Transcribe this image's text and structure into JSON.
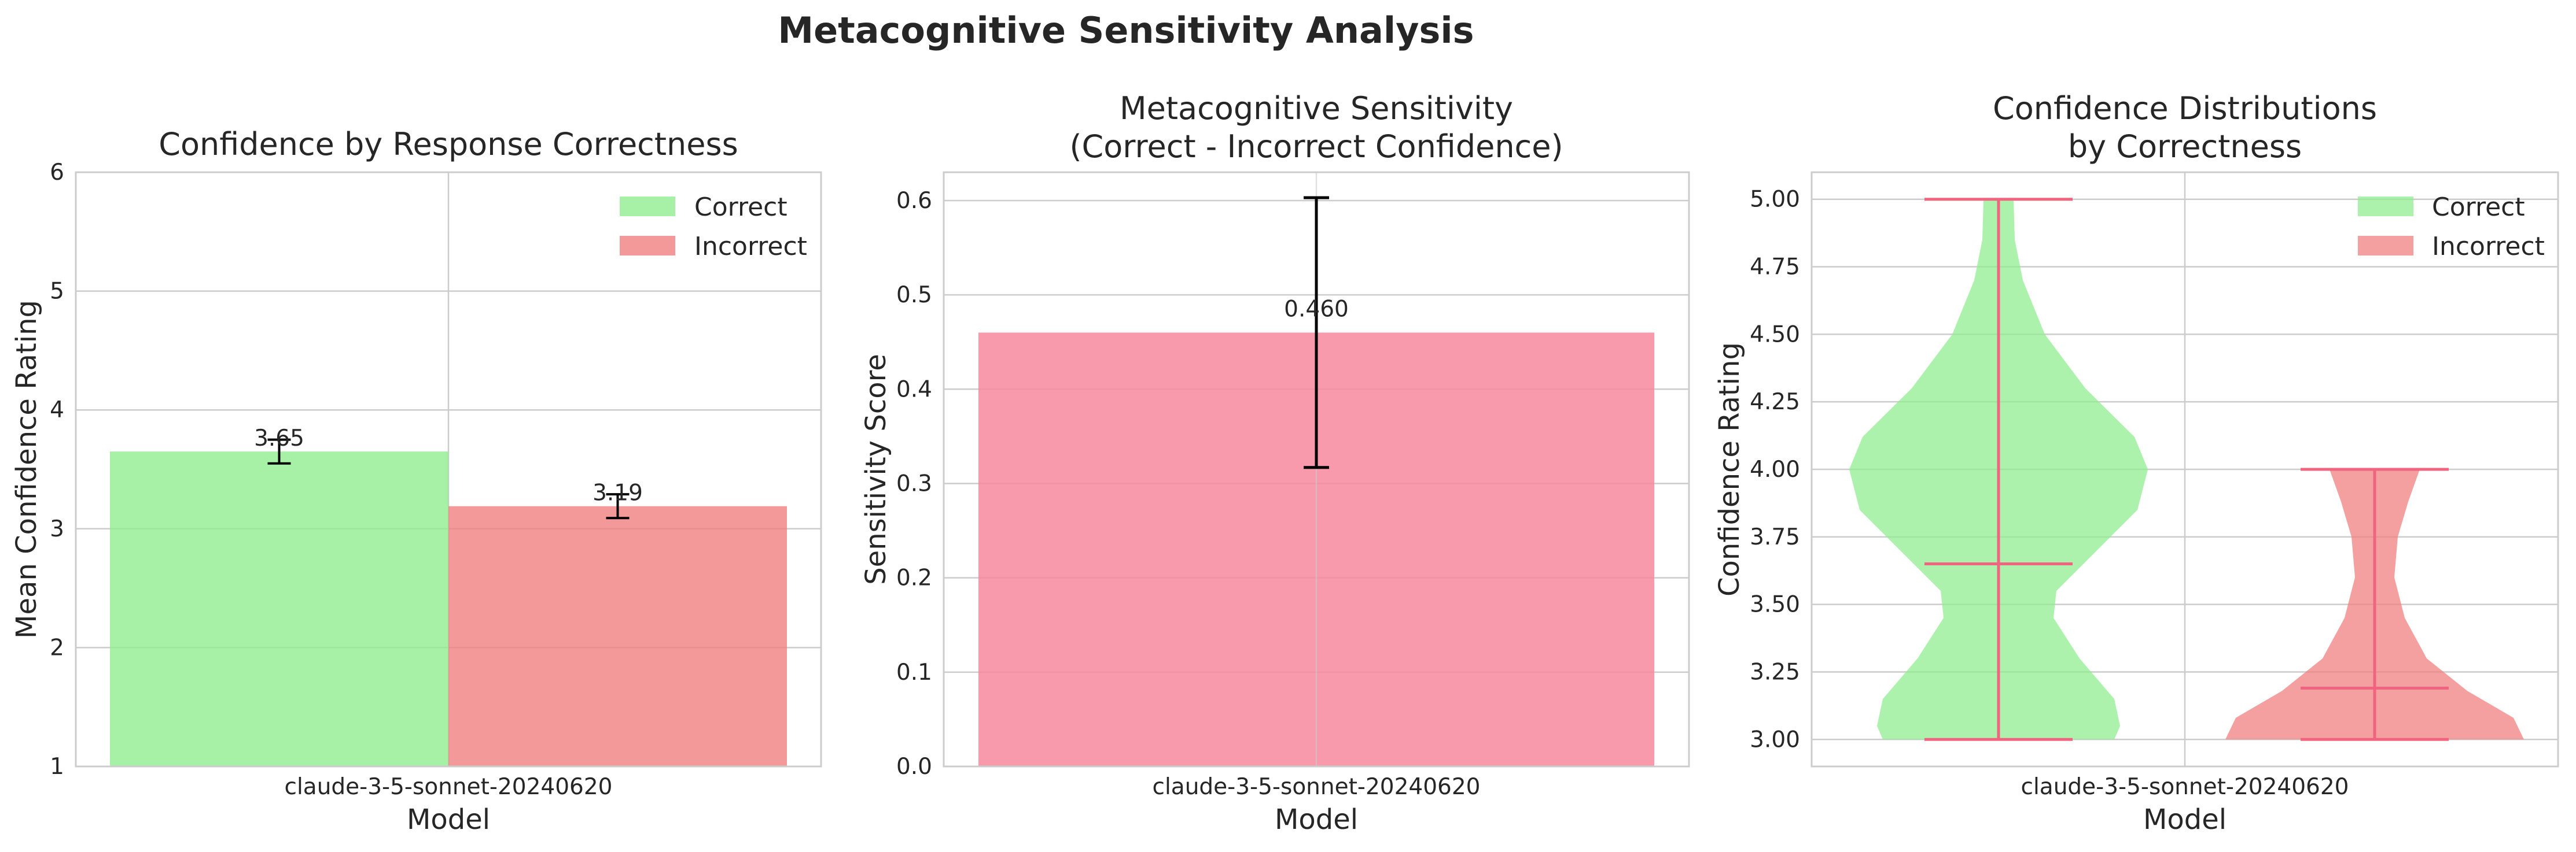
{
  "figure": {
    "title": "Metacognitive Sensitivity Analysis"
  },
  "colors": {
    "correct": "#90EE90",
    "incorrect": "#F08080",
    "sensitivity_bar": "#F7879E",
    "violin_lines": "#F0647F",
    "grid": "#CCCCCC",
    "spine": "#CCCCCC"
  },
  "chart_data": [
    {
      "type": "bar",
      "title": "Confidence by Response Correctness",
      "xlabel": "Model",
      "ylabel": "Mean Confidence Rating",
      "categories": [
        "claude-3-5-sonnet-20240620"
      ],
      "ylim": [
        1,
        6
      ],
      "yticks": [
        "1",
        "2",
        "3",
        "4",
        "5",
        "6"
      ],
      "legend_position": "top-right",
      "grid": true,
      "series": [
        {
          "name": "Correct",
          "values": [
            3.65
          ],
          "error": [
            0.1
          ],
          "value_labels": [
            "3.65"
          ]
        },
        {
          "name": "Incorrect",
          "values": [
            3.19
          ],
          "error": [
            0.1
          ],
          "value_labels": [
            "3.19"
          ]
        }
      ]
    },
    {
      "type": "bar",
      "title_lines": [
        "Metacognitive Sensitivity",
        "(Correct - Incorrect Confidence)"
      ],
      "xlabel": "Model",
      "ylabel": "Sensitivity Score",
      "categories": [
        "claude-3-5-sonnet-20240620"
      ],
      "ylim": [
        0,
        0.63
      ],
      "yticks": [
        "0.0",
        "0.1",
        "0.2",
        "0.3",
        "0.4",
        "0.5",
        "0.6"
      ],
      "grid": true,
      "reference_line": 0,
      "series": [
        {
          "values": [
            0.46
          ],
          "error": [
            0.143
          ],
          "value_labels": [
            "0.460"
          ]
        }
      ]
    },
    {
      "type": "violin",
      "title_lines": [
        "Confidence Distributions",
        "by Correctness"
      ],
      "xlabel": "Model",
      "ylabel": "Confidence Rating",
      "categories": [
        "claude-3-5-sonnet-20240620"
      ],
      "ylim": [
        2.9,
        5.1
      ],
      "yticks": [
        "3.00",
        "3.25",
        "3.50",
        "3.75",
        "4.00",
        "4.25",
        "4.50",
        "4.75",
        "5.00"
      ],
      "legend_position": "top-right",
      "grid": true,
      "series": [
        {
          "name": "Correct",
          "min": 3.0,
          "max": 5.0,
          "mean": 3.65
        },
        {
          "name": "Incorrect",
          "min": 3.0,
          "max": 4.0,
          "mean": 3.19
        }
      ]
    }
  ]
}
